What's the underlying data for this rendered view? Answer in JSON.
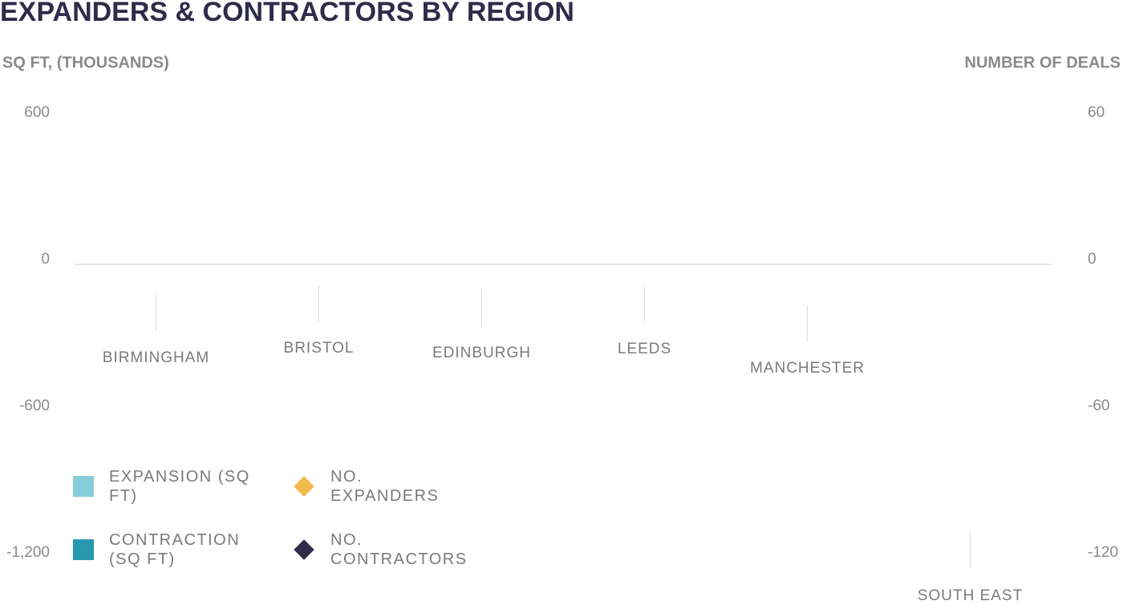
{
  "chart_data": {
    "type": "bar",
    "title": "EXPANDERS & CONTRACTORS BY REGION",
    "y_label": "SQ FT, (THOUSANDS)",
    "y2_label": "NUMBER OF DEALS",
    "categories": [
      "BIRMINGHAM",
      "BRISTOL",
      "EDINBURGH",
      "LEEDS",
      "MANCHESTER",
      "SOUTH EAST"
    ],
    "series": [
      {
        "name": "EXPANSION (SQ FT)",
        "color": "#86cdd9",
        "values": [
          null,
          null,
          null,
          null,
          null,
          null
        ]
      },
      {
        "name": "CONTRACTION (SQ FT)",
        "color": "#2698b0",
        "values": [
          null,
          null,
          null,
          null,
          null,
          null
        ]
      },
      {
        "name": "NO. EXPANDERS",
        "color": "#f2b84b",
        "axis": "y2",
        "marker": "diamond",
        "values": [
          null,
          null,
          null,
          null,
          null,
          null
        ]
      },
      {
        "name": "NO. CONTRACTORS",
        "color": "#2e2c4a",
        "axis": "y2",
        "marker": "diamond",
        "values": [
          null,
          null,
          null,
          null,
          null,
          null
        ]
      }
    ],
    "ylim": [
      -1200,
      600
    ],
    "yticks": [
      600,
      0,
      -600,
      {
        "value": -1200,
        "label": "-1,200"
      }
    ],
    "y2lim": [
      -120,
      60
    ],
    "y2ticks": [
      60,
      0,
      -60,
      -120
    ]
  }
}
